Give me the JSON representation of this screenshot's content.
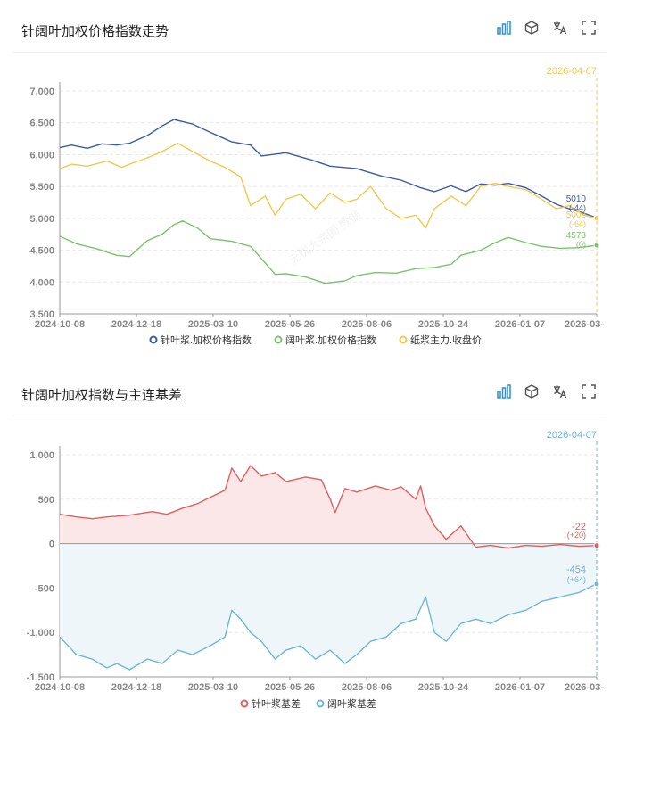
{
  "toolbar": {
    "icons": [
      "bar-chart-icon",
      "cube-icon",
      "translate-icon",
      "fullscreen-icon"
    ]
  },
  "panels": [
    {
      "title": "针阔叶加权价格指数走势"
    },
    {
      "title": "针阔叶加权指数与主连基差"
    }
  ],
  "watermark": "无忧大宗圈 数据",
  "chart_data": [
    {
      "type": "line",
      "x_ticks": [
        "2024-10-08",
        "2024-12-18",
        "2025-03-10",
        "2025-05-26",
        "2025-08-06",
        "2025-10-24",
        "2026-01-07",
        "2026-03-"
      ],
      "x_start": "2024-10-08",
      "x_end": "2026-04-07",
      "ylim": [
        3500,
        7000
      ],
      "y_ticks": [
        3500,
        4000,
        4500,
        5000,
        5500,
        6000,
        6500,
        7000
      ],
      "y_tick_labels": [
        "3,500",
        "4,000",
        "4,500",
        "5,000",
        "5,500",
        "6,000",
        "6,500",
        "7,000"
      ],
      "cursor_label": "2026-04-07",
      "legend_position": "bottom",
      "series": [
        {
          "name": "针叶浆.加权价格指数",
          "color": "#3b5ba5",
          "points": [
            [
              "2024-10-08",
              6110
            ],
            [
              "2024-10-20",
              6150
            ],
            [
              "2024-11-05",
              6100
            ],
            [
              "2024-11-20",
              6170
            ],
            [
              "2024-12-05",
              6150
            ],
            [
              "2024-12-18",
              6180
            ],
            [
              "2025-01-05",
              6300
            ],
            [
              "2025-01-20",
              6450
            ],
            [
              "2025-02-01",
              6550
            ],
            [
              "2025-02-20",
              6480
            ],
            [
              "2025-03-10",
              6350
            ],
            [
              "2025-04-01",
              6200
            ],
            [
              "2025-04-20",
              6150
            ],
            [
              "2025-05-01",
              5980
            ],
            [
              "2025-05-26",
              6030
            ],
            [
              "2025-06-20",
              5920
            ],
            [
              "2025-07-10",
              5820
            ],
            [
              "2025-08-06",
              5780
            ],
            [
              "2025-09-01",
              5660
            ],
            [
              "2025-09-20",
              5600
            ],
            [
              "2025-10-10",
              5480
            ],
            [
              "2025-10-24",
              5420
            ],
            [
              "2025-11-10",
              5510
            ],
            [
              "2025-11-25",
              5420
            ],
            [
              "2025-12-10",
              5540
            ],
            [
              "2025-12-25",
              5520
            ],
            [
              "2026-01-07",
              5550
            ],
            [
              "2026-01-25",
              5480
            ],
            [
              "2026-02-10",
              5350
            ],
            [
              "2026-02-25",
              5220
            ],
            [
              "2026-03-10",
              5150
            ],
            [
              "2026-03-25",
              5080
            ],
            [
              "2026-04-07",
              5010
            ]
          ],
          "end_label": "5010",
          "end_change": "(-44)"
        },
        {
          "name": "阔叶浆.加权价格指数",
          "color": "#7cc36e",
          "points": [
            [
              "2024-10-08",
              4720
            ],
            [
              "2024-10-25",
              4600
            ],
            [
              "2024-11-15",
              4520
            ],
            [
              "2024-12-05",
              4420
            ],
            [
              "2024-12-18",
              4400
            ],
            [
              "2025-01-05",
              4650
            ],
            [
              "2025-01-20",
              4750
            ],
            [
              "2025-02-01",
              4900
            ],
            [
              "2025-02-10",
              4960
            ],
            [
              "2025-02-25",
              4850
            ],
            [
              "2025-03-10",
              4680
            ],
            [
              "2025-04-01",
              4640
            ],
            [
              "2025-04-20",
              4560
            ],
            [
              "2025-05-05",
              4300
            ],
            [
              "2025-05-15",
              4120
            ],
            [
              "2025-05-26",
              4130
            ],
            [
              "2025-06-15",
              4080
            ],
            [
              "2025-07-05",
              3980
            ],
            [
              "2025-07-25",
              4020
            ],
            [
              "2025-08-06",
              4100
            ],
            [
              "2025-08-25",
              4150
            ],
            [
              "2025-09-15",
              4140
            ],
            [
              "2025-10-05",
              4210
            ],
            [
              "2025-10-24",
              4230
            ],
            [
              "2025-11-10",
              4280
            ],
            [
              "2025-11-20",
              4420
            ],
            [
              "2025-12-10",
              4500
            ],
            [
              "2025-12-25",
              4620
            ],
            [
              "2026-01-07",
              4700
            ],
            [
              "2026-01-25",
              4620
            ],
            [
              "2026-02-10",
              4560
            ],
            [
              "2026-03-01",
              4530
            ],
            [
              "2026-03-20",
              4540
            ],
            [
              "2026-04-07",
              4578
            ]
          ],
          "end_label": "4578",
          "end_change": "(0)"
        },
        {
          "name": "纸浆主力.收盘价",
          "color": "#f2c94c",
          "points": [
            [
              "2024-10-08",
              5780
            ],
            [
              "2024-10-20",
              5850
            ],
            [
              "2024-11-05",
              5820
            ],
            [
              "2024-11-25",
              5900
            ],
            [
              "2024-12-10",
              5800
            ],
            [
              "2024-12-18",
              5850
            ],
            [
              "2025-01-05",
              5950
            ],
            [
              "2025-01-20",
              6050
            ],
            [
              "2025-02-05",
              6180
            ],
            [
              "2025-02-20",
              6050
            ],
            [
              "2025-03-10",
              5900
            ],
            [
              "2025-03-25",
              5800
            ],
            [
              "2025-04-10",
              5650
            ],
            [
              "2025-04-20",
              5200
            ],
            [
              "2025-05-05",
              5350
            ],
            [
              "2025-05-15",
              5050
            ],
            [
              "2025-05-26",
              5300
            ],
            [
              "2025-06-10",
              5380
            ],
            [
              "2025-06-25",
              5150
            ],
            [
              "2025-07-10",
              5400
            ],
            [
              "2025-07-25",
              5250
            ],
            [
              "2025-08-06",
              5300
            ],
            [
              "2025-08-20",
              5500
            ],
            [
              "2025-09-05",
              5150
            ],
            [
              "2025-09-20",
              5000
            ],
            [
              "2025-10-05",
              5050
            ],
            [
              "2025-10-15",
              4850
            ],
            [
              "2025-10-24",
              5150
            ],
            [
              "2025-11-10",
              5350
            ],
            [
              "2025-11-25",
              5200
            ],
            [
              "2025-12-10",
              5500
            ],
            [
              "2025-12-25",
              5550
            ],
            [
              "2026-01-07",
              5500
            ],
            [
              "2026-01-25",
              5450
            ],
            [
              "2026-02-10",
              5300
            ],
            [
              "2026-02-25",
              5150
            ],
            [
              "2026-03-10",
              5200
            ],
            [
              "2026-03-25",
              5050
            ],
            [
              "2026-04-07",
              5002
            ]
          ],
          "end_label": "5002",
          "end_change": "(-64)"
        }
      ]
    },
    {
      "type": "area",
      "x_ticks": [
        "2024-10-08",
        "2024-12-18",
        "2025-03-10",
        "2025-05-26",
        "2025-08-06",
        "2025-10-24",
        "2026-01-07",
        "2026-03-"
      ],
      "x_start": "2024-10-08",
      "x_end": "2026-04-07",
      "ylim": [
        -1500,
        1000
      ],
      "y_ticks": [
        -1500,
        -1000,
        -500,
        0,
        500,
        1000
      ],
      "y_tick_labels": [
        "-1,500",
        "-1,000",
        "-500",
        "0",
        "500",
        "1,000"
      ],
      "cursor_label": "2026-04-07",
      "legend_position": "bottom",
      "series": [
        {
          "name": "针叶浆基差",
          "color": "#e06060",
          "points": [
            [
              "2024-10-08",
              330
            ],
            [
              "2024-10-25",
              300
            ],
            [
              "2024-11-10",
              280
            ],
            [
              "2024-11-25",
              300
            ],
            [
              "2024-12-18",
              320
            ],
            [
              "2025-01-10",
              360
            ],
            [
              "2025-01-25",
              330
            ],
            [
              "2025-02-10",
              400
            ],
            [
              "2025-02-25",
              450
            ],
            [
              "2025-03-10",
              520
            ],
            [
              "2025-03-25",
              600
            ],
            [
              "2025-04-01",
              850
            ],
            [
              "2025-04-10",
              700
            ],
            [
              "2025-04-20",
              880
            ],
            [
              "2025-05-01",
              760
            ],
            [
              "2025-05-15",
              800
            ],
            [
              "2025-05-26",
              700
            ],
            [
              "2025-06-15",
              750
            ],
            [
              "2025-07-01",
              720
            ],
            [
              "2025-07-10",
              500
            ],
            [
              "2025-07-15",
              350
            ],
            [
              "2025-07-25",
              620
            ],
            [
              "2025-08-06",
              580
            ],
            [
              "2025-08-25",
              650
            ],
            [
              "2025-09-10",
              600
            ],
            [
              "2025-09-20",
              640
            ],
            [
              "2025-10-05",
              500
            ],
            [
              "2025-10-10",
              650
            ],
            [
              "2025-10-15",
              400
            ],
            [
              "2025-10-24",
              200
            ],
            [
              "2025-11-05",
              50
            ],
            [
              "2025-11-20",
              200
            ],
            [
              "2025-12-05",
              -40
            ],
            [
              "2025-12-20",
              -20
            ],
            [
              "2026-01-07",
              -50
            ],
            [
              "2026-01-25",
              -20
            ],
            [
              "2026-02-10",
              -30
            ],
            [
              "2026-03-01",
              -10
            ],
            [
              "2026-03-20",
              -30
            ],
            [
              "2026-04-07",
              -22
            ]
          ],
          "end_label": "-22",
          "end_change": "(+20)"
        },
        {
          "name": "阔叶浆基差",
          "color": "#6db8d3",
          "points": [
            [
              "2024-10-08",
              -1050
            ],
            [
              "2024-10-25",
              -1250
            ],
            [
              "2024-11-10",
              -1300
            ],
            [
              "2024-11-25",
              -1400
            ],
            [
              "2024-12-05",
              -1350
            ],
            [
              "2024-12-18",
              -1420
            ],
            [
              "2025-01-05",
              -1300
            ],
            [
              "2025-01-20",
              -1350
            ],
            [
              "2025-02-05",
              -1200
            ],
            [
              "2025-02-20",
              -1250
            ],
            [
              "2025-03-10",
              -1150
            ],
            [
              "2025-03-25",
              -1050
            ],
            [
              "2025-04-01",
              -750
            ],
            [
              "2025-04-10",
              -850
            ],
            [
              "2025-04-20",
              -1000
            ],
            [
              "2025-05-01",
              -1100
            ],
            [
              "2025-05-15",
              -1300
            ],
            [
              "2025-05-26",
              -1200
            ],
            [
              "2025-06-10",
              -1150
            ],
            [
              "2025-06-25",
              -1300
            ],
            [
              "2025-07-10",
              -1200
            ],
            [
              "2025-07-25",
              -1350
            ],
            [
              "2025-08-06",
              -1250
            ],
            [
              "2025-08-20",
              -1100
            ],
            [
              "2025-09-05",
              -1050
            ],
            [
              "2025-09-20",
              -900
            ],
            [
              "2025-10-05",
              -850
            ],
            [
              "2025-10-15",
              -600
            ],
            [
              "2025-10-24",
              -1000
            ],
            [
              "2025-11-05",
              -1100
            ],
            [
              "2025-11-20",
              -900
            ],
            [
              "2025-12-05",
              -850
            ],
            [
              "2025-12-20",
              -900
            ],
            [
              "2026-01-07",
              -800
            ],
            [
              "2026-01-25",
              -750
            ],
            [
              "2026-02-10",
              -650
            ],
            [
              "2026-03-01",
              -600
            ],
            [
              "2026-03-20",
              -550
            ],
            [
              "2026-04-07",
              -454
            ]
          ],
          "end_label": "-454",
          "end_change": "(+64)"
        }
      ]
    }
  ]
}
